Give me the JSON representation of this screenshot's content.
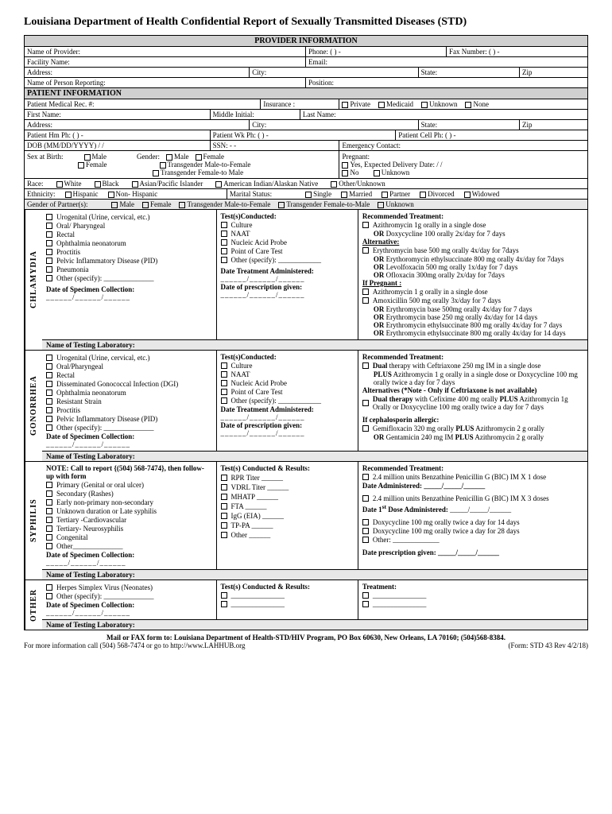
{
  "title": "Louisiana Department of Health Confidential Report of Sexually Transmitted Diseases (STD)",
  "provider": {
    "header": "PROVIDER INFORMATION",
    "name_label": "Name of Provider:",
    "phone_label": "Phone:   (      )         -",
    "fax_label": "Fax Number:    (      )         -",
    "facility_label": "Facility Name:",
    "email_label": "Email:",
    "address_label": "Address:",
    "city_label": "City:",
    "state_label": "State:",
    "zip_label": "Zip",
    "reporter_label": "Name of Person Reporting:",
    "position_label": "Position:"
  },
  "patient": {
    "header": "PATIENT INFORMATION",
    "medrec_label": "Patient Medical Rec. #:",
    "insurance_label": "Insurance :",
    "ins_private": "Private",
    "ins_medicaid": "Medicaid",
    "ins_unknown": "Unknown",
    "ins_none": "None",
    "firstname_label": "First Name:",
    "mi_label": "Middle Initial:",
    "lastname_label": "Last Name:",
    "address_label": "Address:",
    "city_label": "City:",
    "state_label": "State:",
    "zip_label": "Zip",
    "hmph_label": "Patient Hm Ph:       (       )          -",
    "wkph_label": "Patient Wk Ph:       (       )         -",
    "cellph_label": "Patient Cell Ph:    (       )         -",
    "dob_label": "DOB (MM/DD/YYYY)            /         /",
    "ssn_label": "SSN:              -        -",
    "emerg_label": "Emergency Contact:",
    "sex_label": "Sex at Birth:",
    "sex_male": "Male",
    "sex_female": "Female",
    "gender_label": "Gender:",
    "g_male": "Male",
    "g_female": "Female",
    "g_tmf": "Transgender Male-to-Female",
    "g_tfm": "Transgender Female-to Male",
    "preg_label": "Pregnant:",
    "preg_yes": "Yes, Expected Delivery Date:    /    /",
    "preg_no": "No",
    "preg_unknown": "Unknown",
    "race_label": "Race:",
    "r_white": "White",
    "r_black": "Black",
    "r_api": "Asian/Pacific Islander",
    "r_aian": "American Indian/Alaskan Native",
    "r_other": "Other/Unknown",
    "eth_label": "Ethnicity:",
    "e_hisp": "Hispanic",
    "e_nonhisp": "Non- Hispanic",
    "marital_label": "Marital Status:",
    "m_single": "Single",
    "m_married": "Married",
    "m_partner": "Partner",
    "m_divorced": "Divorced",
    "m_widowed": "Widowed",
    "partner_label": "Gender of Partner(s):",
    "p_male": "Male",
    "p_female": "Female",
    "p_tmf": "Transgender Male-to-Female",
    "p_tfm": "Transgender Female-to-Male",
    "p_unknown": "Unknown"
  },
  "chlamydia": {
    "label": "CHLAMYDIA",
    "conditions": [
      "Urogenital (Urine, cervical, etc.)",
      "Oral/ Pharyngeal",
      "Rectal",
      "Ophthalmia neonatorum",
      "Proctitis",
      "Pelvic Inflammatory Disease (PID)",
      "Pneumonia",
      "Other (specify): ______________"
    ],
    "spec_label": "Date of Specimen Collection:",
    "date_blank": "______/______/______",
    "tests_label": "Test(s)Conducted:",
    "tests": [
      "Culture",
      "NAAT",
      "Nucleic Acid Probe",
      "Point of Care Test",
      "Other (specify): ____________"
    ],
    "dta_label": "Date Treatment Administered:",
    "dpg_label": "Date of prescription given:",
    "date_blank2": "______/______/______",
    "rec_label": "Recommended Treatment:",
    "rec1": "Azithromycin 1g orally in a single dose",
    "rec1b": "OR Doxycycline 100 orally 2x/day for 7 days",
    "alt_label": "Alternative:",
    "alt1": "Erythromycin base 500 mg orally 4x/day for 7days",
    "alt2": "OR Erythoromycin ethylsuccinate 800 mg orally 4x/day for 7days",
    "alt3": "OR Levolfoxacin 500 mg orally 1x/day for 7 days",
    "alt4": "OR Ofloxacin 300mg orally 2x/day for 7days",
    "ifpreg_label": "If Pregnant :",
    "p1": "Azithromycin 1 g orally in a single dose",
    "p2": "Amoxicillin 500 mg orally 3x/day for 7 days",
    "p3": "OR Erythromycin base 500mg orally 4x/day for 7 days",
    "p4": "OR Erythromycin base 250 mg orally 4x/day for 14 days",
    "p5": "OR Erythromycin ethylsuccinate 800 mg orally 4x/day for 7 days",
    "p6": "OR Erythromycin ethylsuccinate 800 mg orally 4x/day for 14 days",
    "lab_label": "Name of Testing Laboratory:"
  },
  "gonorrhea": {
    "label": "GONORRHEA",
    "conditions": [
      "Urogenital (Urine, cervical, etc.)",
      "Oral/Pharyngeal",
      "Rectal",
      "Disseminated Gonococcal Infection (DGI)",
      "Ophthalmia neonatorum",
      "Resistant Strain",
      "Proctitis",
      "Pelvic Inflammatory Disease (PID)",
      "Other (specify): ______________"
    ],
    "spec_label": "Date of Specimen Collection:",
    "date_blank": "______/______/______",
    "tests_label": "Test(s)Conducted:",
    "tests": [
      "Culture",
      "NAAT",
      "Nucleic Acid Probe",
      "Point of Care Test",
      "Other (specify): ____________"
    ],
    "dta_label": "Date Treatment Administered:",
    "dpg_label": "Date of prescription given:",
    "date_blank2": "______/______/______",
    "rec_label": "Recommended Treatment:",
    "rec1": "Dual therapy with Ceftriaxone 250 mg IM in a single dose",
    "rec1b": "PLUS Azithromycin 1 g orally in a single dose or Doxycycline 100 mg orally twice a day for 7 days",
    "alt_label": "Alternatives (*Note - Only if Ceftriaxone is not available)",
    "alt1": "Dual therapy with Cefixime 400 mg orally PLUS Azithromycin 1g Orally or Doxycycline 100 mg orally twice a day for 7 days",
    "ceph_label": "If cephalosporin allergic:",
    "ceph1": "Gemifloxacin 320 mg orally PLUS Azithromycin 2 g  orally",
    "ceph2": "OR Gentamicin 240 mg IM PLUS Azithromycin 2 g orally",
    "lab_label": "Name of Testing Laboratory:"
  },
  "syphilis": {
    "label": "SYPHILIS",
    "note": "NOTE: Call to report {(504) 568-7474}, then follow-up with form",
    "conditions": [
      "Primary (Genital or oral ulcer)",
      "Secondary (Rashes)",
      "Early non-primary non-secondary",
      "Unknown duration or Late syphilis",
      "Tertiary -Cardiovascular",
      "Tertiary- Neurosyphilis",
      "Congenital",
      "Other______________"
    ],
    "spec_label": "Date of Specimen Collection:",
    "date_blank": "_____/______/______",
    "tests_label": "Test(s) Conducted & Results:",
    "tests": [
      "RPR Titer ______",
      "VDRL Titer ______",
      "MHATP ______",
      "FTA ______",
      "IgG (EIA) ______",
      "TP-PA ______",
      "Other ______"
    ],
    "rec_label": "Recommended Treatment:",
    "rec1": "2.4 million units Benzathine Penicillin G (BIC) IM X 1 dose",
    "da_label": "Date Administered: _____/_____/______",
    "rec2": "2.4 million units Benzathine Penicillin G (BIC) IM X 3 doses",
    "d1_label": "Date 1st Dose Administered: _____/_____/______",
    "rec3": "Doxycycline 100 mg orally twice a day for 14 days",
    "rec4": "Doxycycline 100 mg orally twice a day for 28 days",
    "rec5": "Other: _____________",
    "dpg_label": "Date prescription given: _____/_____/______",
    "lab_label": "Name of Testing Laboratory:"
  },
  "other": {
    "label": "OTHER",
    "conditions": [
      "Herpes Simplex Virus (Neonates)",
      "Other (specify): ______________"
    ],
    "spec_label": "Date of Specimen Collection:",
    "date_blank": "______/______/______",
    "tests_label": "Test(s) Conducted & Results:",
    "treat_label": "Treatment:",
    "blank": "_______________",
    "lab_label": "Name of Testing Laboratory:"
  },
  "footer": {
    "line1": "Mail or FAX form to: Louisiana Department of Health-STD/HIV Program, PO Box 60630, New Orleans, LA 70160; (504)568-8384.",
    "line2a": "For more information call (504) 568-7474 or go to http://www.LAHHUB.org",
    "line2b": "(Form: STD 43 Rev 4/2/18)"
  }
}
